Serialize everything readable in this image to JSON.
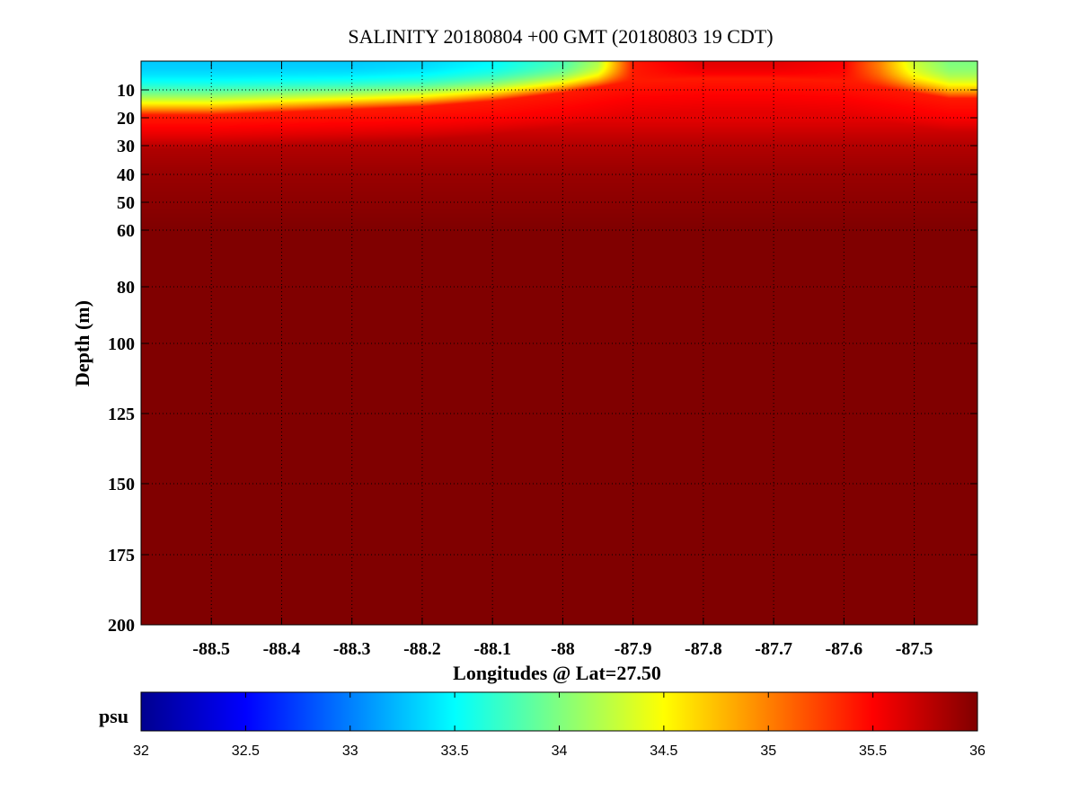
{
  "chart_data": {
    "type": "heatmap",
    "title": "SALINITY 20180804 +00 GMT (20180803 19 CDT)",
    "xlabel": "Longitudes @ Lat=27.50",
    "ylabel": "Depth (m)",
    "x_ticks": [
      -88.5,
      -88.4,
      -88.3,
      -88.2,
      -88.1,
      -88,
      -87.9,
      -87.8,
      -87.7,
      -87.6,
      -87.5
    ],
    "x_tick_labels": [
      "-88.5",
      "-88.4",
      "-88.3",
      "-88.2",
      "-88.1",
      "-88",
      "-87.9",
      "-87.8",
      "-87.7",
      "-87.6",
      "-87.5"
    ],
    "xlim": [
      -88.6,
      -87.41
    ],
    "y_ticks": [
      10,
      20,
      30,
      40,
      50,
      60,
      80,
      100,
      125,
      150,
      175,
      200
    ],
    "y_tick_labels": [
      "10",
      "20",
      "30",
      "40",
      "50",
      "60",
      "80",
      "100",
      "125",
      "150",
      "175",
      "200"
    ],
    "ylim": [
      0,
      200
    ],
    "y_direction": "depth increases downward",
    "grid": true,
    "grid_style": "dotted",
    "colorbar": {
      "label": "psu",
      "min": 32,
      "max": 36,
      "ticks": [
        32,
        32.5,
        33,
        33.5,
        34,
        34.5,
        35,
        35.5,
        36
      ],
      "tick_labels": [
        "32",
        "32.5",
        "33",
        "33.5",
        "34",
        "34.5",
        "35",
        "35.5",
        "36"
      ],
      "colormap": "jet",
      "placement": "bottom"
    },
    "surface_layer": {
      "x": [
        -88.6,
        -88.5,
        -88.4,
        -88.3,
        -88.2,
        -88.1,
        -88.0,
        -87.95,
        -87.9,
        -87.8,
        -87.7,
        -87.6,
        -87.55,
        -87.5,
        -87.45,
        -87.41
      ],
      "salinity_at_surface": [
        33.3,
        33.3,
        33.3,
        33.3,
        33.35,
        33.5,
        33.8,
        34.2,
        35.4,
        35.6,
        35.6,
        35.5,
        35.0,
        34.3,
        34.0,
        34.0
      ],
      "halocline_depth_m": [
        19,
        19,
        18,
        17,
        16,
        14,
        11,
        9,
        7,
        6,
        6,
        7,
        9,
        11,
        13,
        13
      ]
    },
    "deep_value_psu": 36.0,
    "subsurface_depth_m": [
      20,
      30,
      40,
      60
    ],
    "subsurface_salinity": [
      35.6,
      35.8,
      35.9,
      36.0
    ]
  }
}
